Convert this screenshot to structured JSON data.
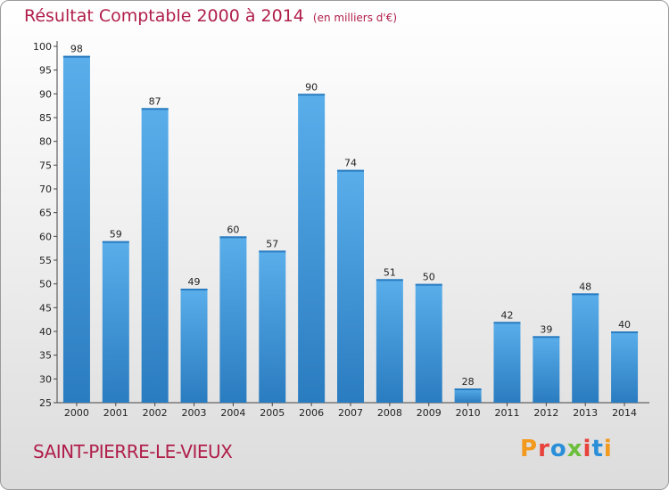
{
  "header": {
    "title": "Résultat Comptable 2000 à 2014",
    "subtitle": "(en milliers d'€)"
  },
  "footer": {
    "town": "SAINT-PIERRE-LE-VIEUX",
    "logo": "Proxiti"
  },
  "colors": {
    "bar_top": "#5aaeea",
    "bar_bottom": "#2a7cc0",
    "title": "#b01e4a",
    "logo_letters": [
      "#f39a1e",
      "#e8423c",
      "#2a8fd8",
      "#6bbf3a",
      "#e8423c",
      "#2a8fd8",
      "#f39a1e"
    ]
  },
  "chart_data": {
    "type": "bar",
    "title": "Résultat Comptable 2000 à 2014",
    "ylabel": "en milliers d'€",
    "xlabel": "",
    "categories": [
      "2000",
      "2001",
      "2002",
      "2003",
      "2004",
      "2005",
      "2006",
      "2007",
      "2008",
      "2009",
      "2010",
      "2011",
      "2012",
      "2013",
      "2014"
    ],
    "values": [
      98,
      59,
      87,
      49,
      60,
      57,
      90,
      74,
      51,
      50,
      28,
      42,
      39,
      48,
      40
    ],
    "ylim": [
      25,
      100
    ],
    "yticks": [
      25,
      30,
      35,
      40,
      45,
      50,
      55,
      60,
      65,
      70,
      75,
      80,
      85,
      90,
      95,
      100
    ],
    "grid": false,
    "legend": "none"
  }
}
